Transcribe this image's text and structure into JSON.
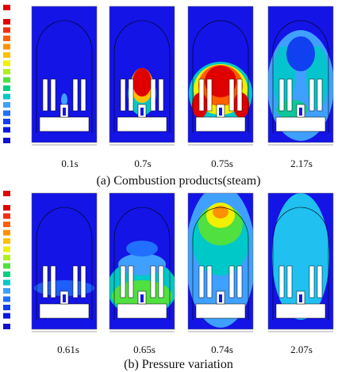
{
  "figure_a": {
    "times": [
      "0.1s",
      "0.7s",
      "0.75s",
      "2.17s"
    ],
    "caption": "(a)  Combustion products(steam)"
  },
  "figure_b": {
    "times": [
      "0.61s",
      "0.65s",
      "0.74s",
      "2.07s"
    ],
    "caption": "(b)  Pressure variation"
  }
}
